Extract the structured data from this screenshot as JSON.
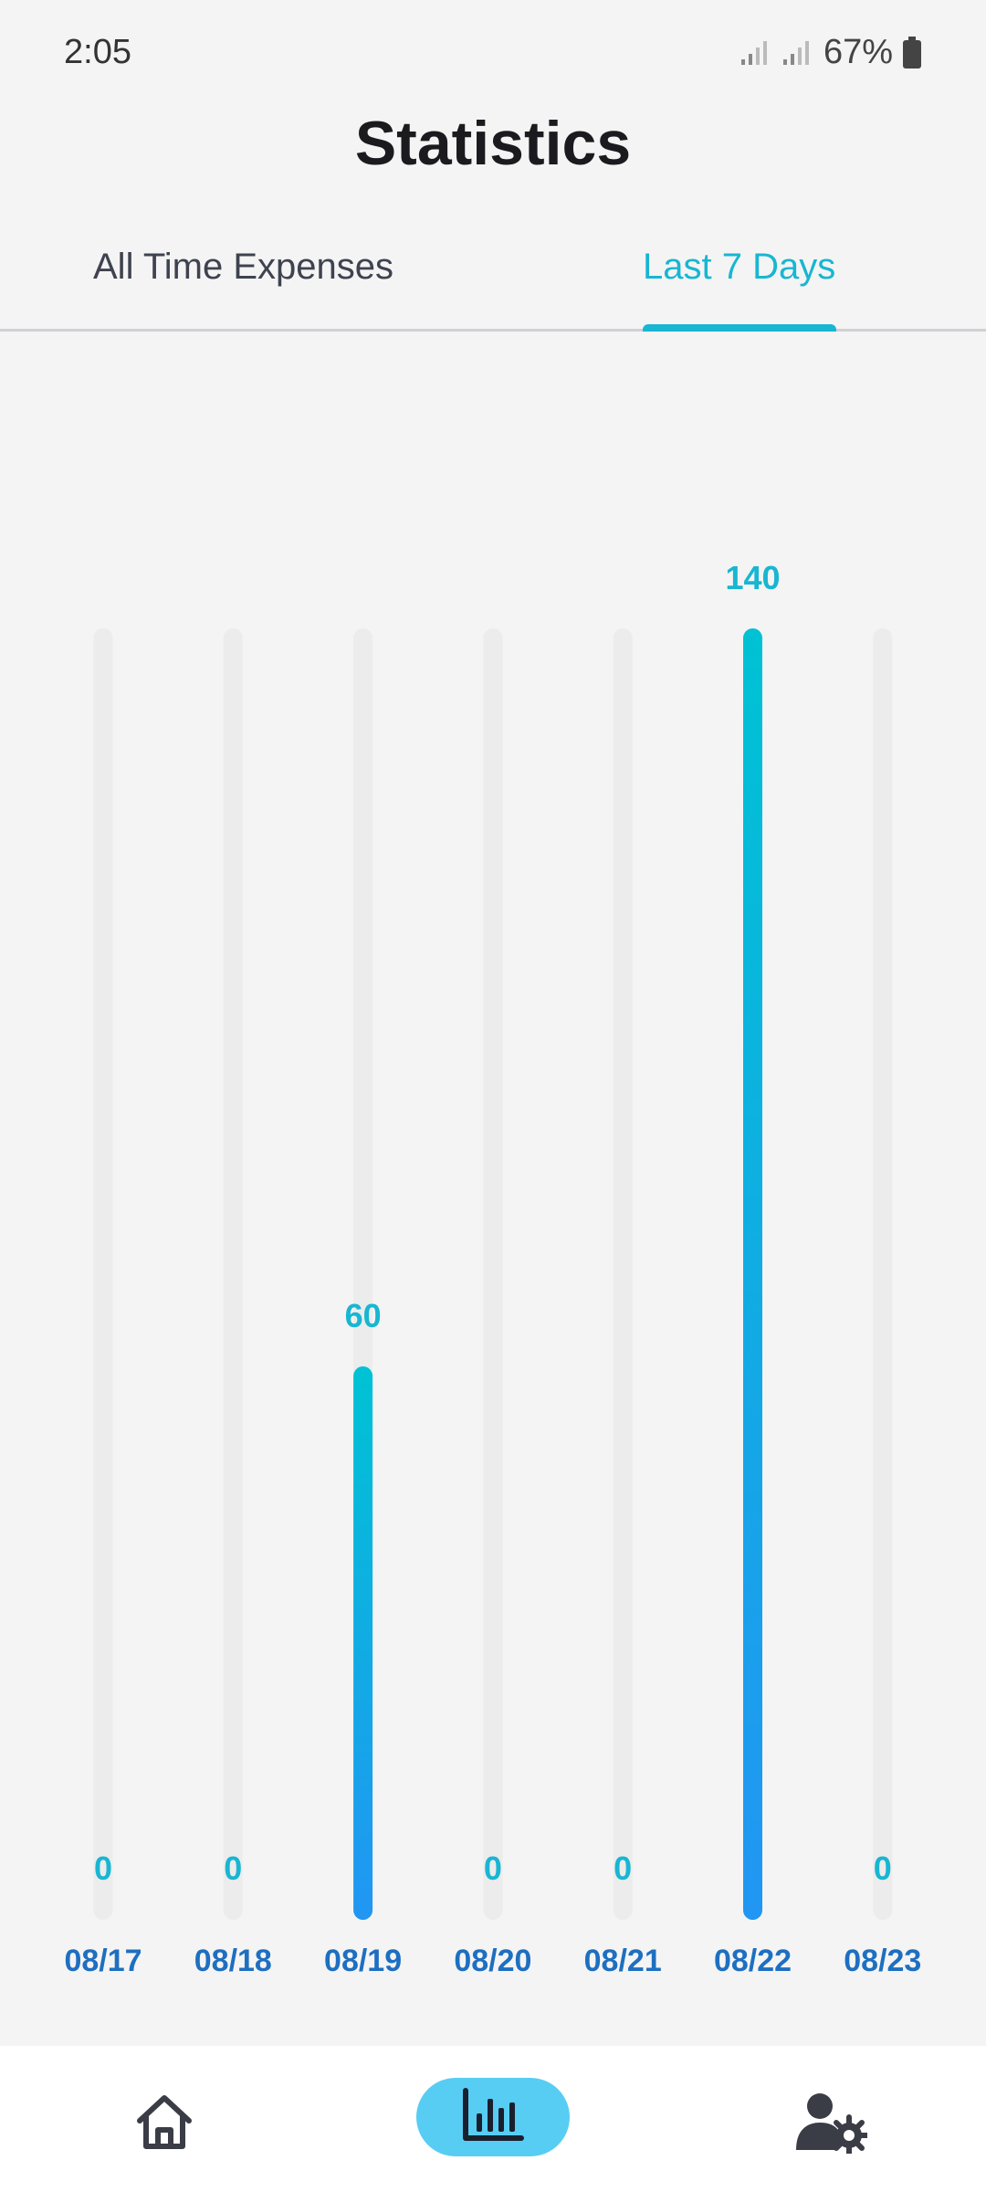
{
  "status_bar": {
    "time": "2:05",
    "battery": "67%"
  },
  "page": {
    "title": "Statistics"
  },
  "tabs": [
    {
      "label": "All Time Expenses",
      "active": false
    },
    {
      "label": "Last 7 Days",
      "active": true
    }
  ],
  "colors": {
    "accent": "#18b6d2",
    "bar_top": "#00c2d4",
    "bar_bottom": "#2196f3",
    "track": "#ececec",
    "date_label": "#1e6fc0",
    "nav_active_bg": "#57cdf3"
  },
  "chart_data": {
    "type": "bar",
    "categories": [
      "08/17",
      "08/18",
      "08/19",
      "08/20",
      "08/21",
      "08/22",
      "08/23"
    ],
    "values": [
      0,
      0,
      60,
      0,
      0,
      140,
      0
    ],
    "ylim": [
      0,
      140
    ],
    "grid": false
  },
  "bottom_nav": [
    {
      "icon": "home-icon",
      "active": false
    },
    {
      "icon": "bar-chart-icon",
      "active": true
    },
    {
      "icon": "user-settings-icon",
      "active": false
    }
  ]
}
